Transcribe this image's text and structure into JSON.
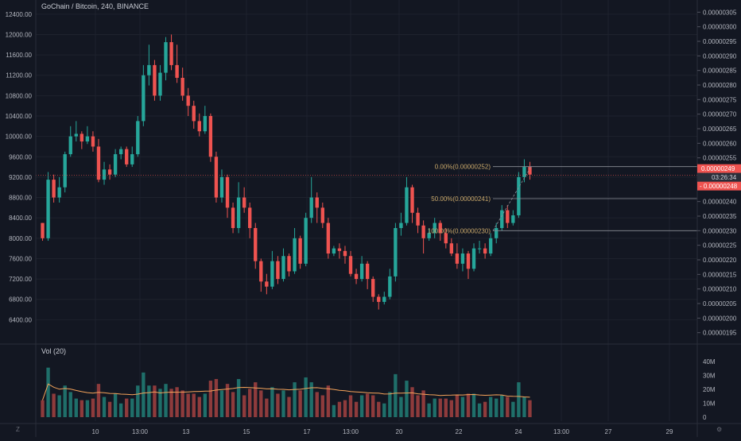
{
  "header": {
    "title": "GoChain / Bitcoin, 240, BINANCE"
  },
  "volume_panel": {
    "title": "Vol (20)"
  },
  "footer": {
    "left_icon": "Z",
    "right_icon": "⚙"
  },
  "colors": {
    "bg": "#131722",
    "up": "#26a69a",
    "down": "#ef5350",
    "vol_up": "#1f6f6a",
    "vol_down": "#8e3b3c",
    "ma": "#f5a35a",
    "fib": "#c9a86a",
    "price_line": "#ef5350"
  },
  "left_axis": {
    "ticks": [
      "12400.00",
      "12000.00",
      "11600.00",
      "11200.00",
      "10800.00",
      "10400.00",
      "10000.00",
      "9600.00",
      "9200.00",
      "8800.00",
      "8400.00",
      "8000.00",
      "7600.00",
      "7200.00",
      "6800.00",
      "6400.00"
    ]
  },
  "right_axis": {
    "ticks": [
      "0.00000305",
      "0.00000300",
      "0.00000295",
      "0.00000290",
      "0.00000285",
      "0.00000280",
      "0.00000275",
      "0.00000270",
      "0.00000265",
      "0.00000260",
      "0.00000255",
      "0.00000250",
      "0.00000245",
      "0.00000240",
      "0.00000235",
      "0.00000230",
      "0.00000225",
      "0.00000220",
      "0.00000215",
      "0.00000210",
      "0.00000205",
      "0.00000200",
      "0.00000195"
    ]
  },
  "volume_axis": {
    "ticks": [
      "40M",
      "30M",
      "20M",
      "10M",
      "0"
    ]
  },
  "time_axis": {
    "ticks": [
      "10",
      "13:00",
      "13",
      "15",
      "17",
      "13:00",
      "20",
      "22",
      "24",
      "13:00",
      "27",
      "29"
    ]
  },
  "price_labels": {
    "last": "0.00000249",
    "countdown": "03:26:34",
    "prev": "0.00000248"
  },
  "fib_levels": [
    {
      "label": "0.00%(0.00000252)",
      "value": 2.52e-06
    },
    {
      "label": "50.00%(0.00000241)",
      "value": 2.41e-06
    },
    {
      "label": "100.00%(0.00000230)",
      "value": 2.3e-06
    }
  ],
  "chart_data": {
    "type": "candlestick",
    "title": "GoChain / Bitcoin, 240, BINANCE",
    "y_right_range": [
      1.93e-06,
      3.07e-06
    ],
    "y_left_range": [
      6000,
      12600
    ],
    "overlay": "BTC price series plotted on left axis",
    "candles": [
      [
        8300,
        8000,
        8300,
        7950
      ],
      [
        8000,
        9150,
        9300,
        7950
      ],
      [
        9150,
        8800,
        9250,
        8700
      ],
      [
        8800,
        9000,
        9200,
        8700
      ],
      [
        9000,
        9650,
        9700,
        8900
      ],
      [
        9650,
        10000,
        10200,
        9600
      ],
      [
        10000,
        10050,
        10300,
        9900
      ],
      [
        10050,
        9900,
        10100,
        9750
      ],
      [
        9900,
        10000,
        10200,
        9850
      ],
      [
        10000,
        9800,
        10100,
        9700
      ],
      [
        9800,
        9150,
        9950,
        9100
      ],
      [
        9150,
        9350,
        9500,
        9050
      ],
      [
        9350,
        9250,
        9450,
        9150
      ],
      [
        9250,
        9650,
        9750,
        9200
      ],
      [
        9650,
        9750,
        9800,
        9550
      ],
      [
        9750,
        9450,
        9800,
        9400
      ],
      [
        9450,
        9650,
        9800,
        9400
      ],
      [
        9650,
        10300,
        10400,
        9600
      ],
      [
        10300,
        11200,
        11400,
        10200
      ],
      [
        11200,
        11400,
        11800,
        11000
      ],
      [
        11400,
        10800,
        11500,
        10700
      ],
      [
        10800,
        11250,
        11400,
        10700
      ],
      [
        11250,
        11850,
        11950,
        11100
      ],
      [
        11850,
        11400,
        12000,
        11300
      ],
      [
        11400,
        11150,
        11800,
        11050
      ],
      [
        11150,
        10800,
        11350,
        10700
      ],
      [
        10800,
        10600,
        10950,
        10400
      ],
      [
        10600,
        10300,
        10700,
        10150
      ],
      [
        10300,
        10100,
        10450,
        10000
      ],
      [
        10100,
        10400,
        10600,
        10050
      ],
      [
        10400,
        9600,
        10450,
        9500
      ],
      [
        9600,
        8800,
        9700,
        8700
      ],
      [
        8800,
        9200,
        9350,
        8700
      ],
      [
        9200,
        8600,
        9250,
        8400
      ],
      [
        8600,
        8200,
        8700,
        8100
      ],
      [
        8200,
        8800,
        9100,
        8100
      ],
      [
        8800,
        8600,
        9000,
        8500
      ],
      [
        8600,
        8200,
        8700,
        8000
      ],
      [
        8200,
        7550,
        8300,
        7400
      ],
      [
        7550,
        7150,
        7600,
        6950
      ],
      [
        7150,
        7050,
        7300,
        6900
      ],
      [
        7050,
        7550,
        7750,
        7000
      ],
      [
        7550,
        7200,
        7650,
        7100
      ],
      [
        7200,
        7650,
        7800,
        7150
      ],
      [
        7650,
        7350,
        7700,
        7250
      ],
      [
        7350,
        8000,
        8200,
        7300
      ],
      [
        8000,
        7500,
        8050,
        7400
      ],
      [
        7500,
        8400,
        8500,
        7450
      ],
      [
        8400,
        8800,
        9200,
        8300
      ],
      [
        8800,
        8600,
        8900,
        8300
      ],
      [
        8600,
        8300,
        8700,
        8200
      ],
      [
        8300,
        7700,
        8400,
        7600
      ],
      [
        7700,
        7800,
        7850,
        7650
      ],
      [
        7800,
        7750,
        7900,
        7600
      ],
      [
        7750,
        7650,
        7850,
        7500
      ],
      [
        7650,
        7300,
        7750,
        7250
      ],
      [
        7300,
        7200,
        7400,
        7100
      ],
      [
        7200,
        7500,
        7650,
        7150
      ],
      [
        7500,
        7200,
        7550,
        7000
      ],
      [
        7200,
        6850,
        7250,
        6750
      ],
      [
        6850,
        6750,
        6900,
        6600
      ],
      [
        6750,
        6850,
        6950,
        6700
      ],
      [
        6850,
        7250,
        7400,
        6800
      ],
      [
        7250,
        8200,
        8300,
        7150
      ],
      [
        8200,
        8300,
        8500,
        8050
      ],
      [
        8300,
        9000,
        9200,
        8250
      ],
      [
        9000,
        8500,
        9050,
        8300
      ],
      [
        8500,
        8250,
        8600,
        8100
      ],
      [
        8250,
        8000,
        8350,
        7700
      ],
      [
        8000,
        8100,
        8200,
        7950
      ],
      [
        8100,
        8300,
        8400,
        8000
      ],
      [
        8300,
        8100,
        8350,
        7950
      ],
      [
        8100,
        7900,
        8200,
        7800
      ],
      [
        7900,
        7700,
        8000,
        7650
      ],
      [
        7700,
        7500,
        7900,
        7400
      ],
      [
        7500,
        7700,
        7800,
        7350
      ],
      [
        7700,
        7400,
        7750,
        7200
      ],
      [
        7400,
        7800,
        7900,
        7350
      ],
      [
        7800,
        7800,
        7950,
        7700
      ],
      [
        7800,
        7700,
        7900,
        7600
      ],
      [
        7700,
        8000,
        8100,
        7650
      ],
      [
        8000,
        8200,
        8300,
        7900
      ],
      [
        8200,
        8550,
        8650,
        8150
      ],
      [
        8550,
        8300,
        8650,
        8200
      ],
      [
        8300,
        8450,
        8550,
        8250
      ],
      [
        8450,
        9200,
        9300,
        8400
      ],
      [
        9200,
        9400,
        9550,
        9100
      ],
      [
        9400,
        9250,
        9500,
        9150
      ]
    ]
  }
}
